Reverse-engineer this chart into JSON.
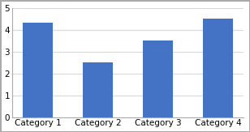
{
  "categories": [
    "Category 1",
    "Category 2",
    "Category 3",
    "Category 4"
  ],
  "values": [
    4.3,
    2.5,
    3.5,
    4.5
  ],
  "bar_color": "#4472C4",
  "bar_width": 0.5,
  "ylim": [
    0,
    5
  ],
  "yticks": [
    0,
    1,
    2,
    3,
    4,
    5
  ],
  "grid_color": "#D9D9D9",
  "background_color": "#FFFFFF",
  "tick_labelsize": 7.5,
  "xlabel_fontsize": 7.5,
  "spine_color": "#AAAAAA",
  "border_color": "#AAAAAA"
}
